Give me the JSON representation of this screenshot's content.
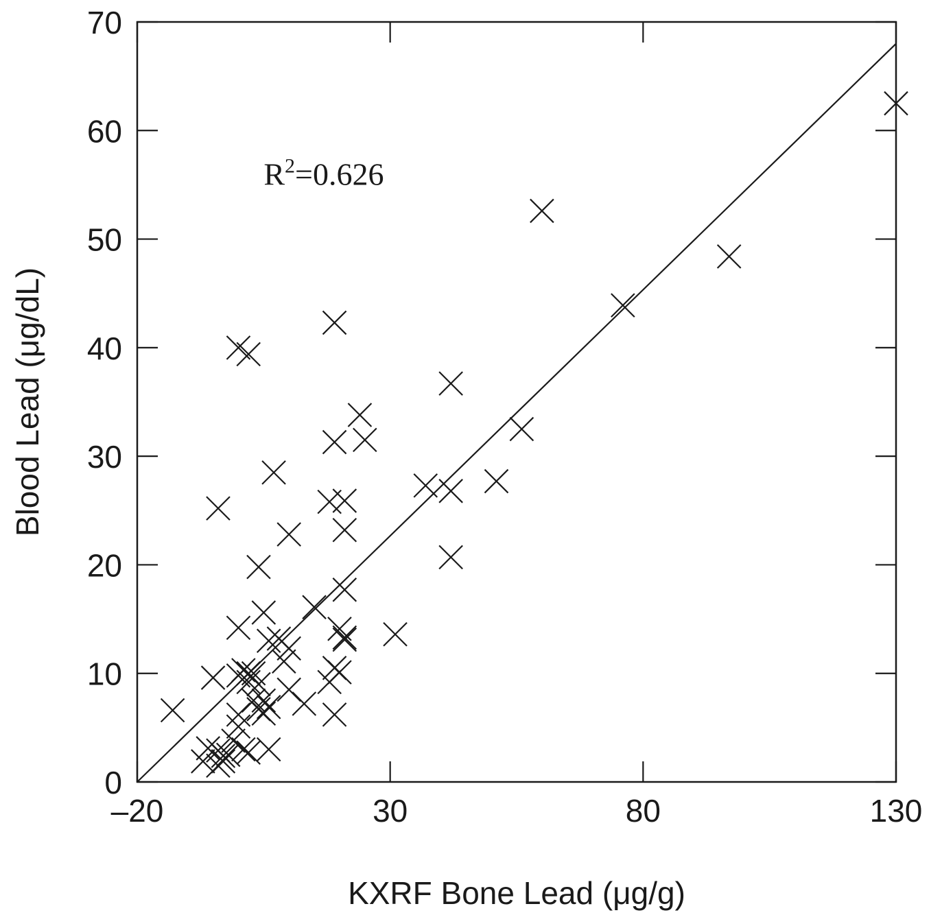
{
  "chart_data": {
    "type": "scatter",
    "title": "",
    "xlabel": "KXRF Bone Lead (μg/g)",
    "ylabel": "Blood Lead (μg/dL)",
    "xlim": [
      -20,
      130
    ],
    "ylim": [
      0,
      70
    ],
    "x_ticks": [
      -20,
      30,
      80,
      130
    ],
    "x_tick_labels": [
      "–20",
      "30",
      "80",
      "130"
    ],
    "y_ticks": [
      0,
      10,
      20,
      30,
      40,
      50,
      60,
      70
    ],
    "y_tick_labels": [
      "0",
      "10",
      "20",
      "30",
      "40",
      "50",
      "60",
      "70"
    ],
    "grid": false,
    "marker": "x",
    "annotation": {
      "base": "R",
      "superscript": "2",
      "rest": "=0.626",
      "x": 5,
      "y": 56
    },
    "regression_line": {
      "x": [
        -20,
        130
      ],
      "y": [
        0,
        68
      ]
    },
    "series": [
      {
        "points": [
          [
            130,
            62.5
          ],
          [
            60,
            52.6
          ],
          [
            97,
            48.4
          ],
          [
            76,
            43.9
          ],
          [
            19,
            42.3
          ],
          [
            0,
            40
          ],
          [
            2,
            39.4
          ],
          [
            42,
            36.7
          ],
          [
            24,
            33.8
          ],
          [
            25,
            31.5
          ],
          [
            19,
            31.3
          ],
          [
            56,
            32.5
          ],
          [
            7,
            28.5
          ],
          [
            37,
            27.3
          ],
          [
            51,
            27.7
          ],
          [
            42,
            26.8
          ],
          [
            21,
            25.9
          ],
          [
            18,
            25.8
          ],
          [
            -4,
            25.2
          ],
          [
            21,
            23.2
          ],
          [
            10,
            22.8
          ],
          [
            42,
            20.7
          ],
          [
            4,
            19.8
          ],
          [
            15,
            16.1
          ],
          [
            5,
            15.6
          ],
          [
            21,
            17.7
          ],
          [
            20,
            14.1
          ],
          [
            21,
            13.3
          ],
          [
            21,
            13.1
          ],
          [
            0,
            14.2
          ],
          [
            20,
            10.1
          ],
          [
            31,
            13.6
          ],
          [
            8,
            13.2
          ],
          [
            6,
            13.0
          ],
          [
            9,
            11.1
          ],
          [
            10,
            12.3
          ],
          [
            -5,
            9.6
          ],
          [
            0,
            9.8
          ],
          [
            1,
            10.3
          ],
          [
            2,
            10.0
          ],
          [
            3,
            10.0
          ],
          [
            2,
            9.2
          ],
          [
            4,
            9.0
          ],
          [
            3,
            7.5
          ],
          [
            4,
            6.7
          ],
          [
            5,
            6.3
          ],
          [
            5,
            7.5
          ],
          [
            6,
            6.9
          ],
          [
            19,
            10.5
          ],
          [
            18,
            9.2
          ],
          [
            10,
            8.5
          ],
          [
            13,
            7.2
          ],
          [
            19,
            6.2
          ],
          [
            -13,
            6.6
          ],
          [
            0,
            6.2
          ],
          [
            0,
            5.1
          ],
          [
            -1,
            3.8
          ],
          [
            1,
            3.0
          ],
          [
            2,
            2.7
          ],
          [
            -6,
            3.1
          ],
          [
            -7,
            1.9
          ],
          [
            -4,
            2.9
          ],
          [
            -3,
            2.4
          ],
          [
            -3,
            1.9
          ],
          [
            -2,
            2.5
          ],
          [
            -4,
            1.5
          ],
          [
            6,
            3.0
          ]
        ]
      }
    ]
  }
}
